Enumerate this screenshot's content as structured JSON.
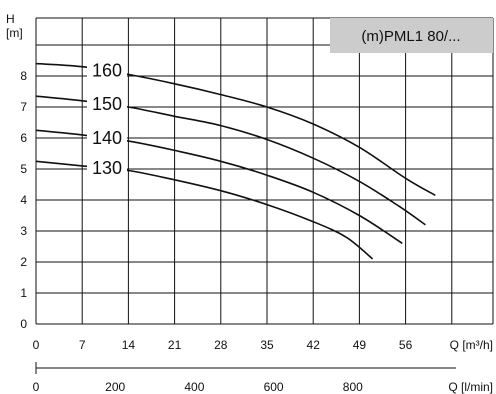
{
  "chart_data": {
    "type": "line",
    "title": "(m)PML1 80/...",
    "ylabel": "H",
    "yunit": "[m]",
    "xlabel_flow_m3h": "Q [m³/h]",
    "xlabel_flow_lmin": "Q [l/min]",
    "xlim": [
      0,
      63
    ],
    "ylim": [
      0,
      9
    ],
    "grid": true,
    "x_ticks": [
      "0",
      "7",
      "14",
      "21",
      "28",
      "35",
      "42",
      "49",
      "56"
    ],
    "y_ticks": [
      "0",
      "1",
      "2",
      "3",
      "4",
      "5",
      "6",
      "7",
      "8"
    ],
    "lmin_ticks": [
      "0",
      "200",
      "400",
      "600",
      "800"
    ],
    "series": [
      {
        "name": "160",
        "x": [
          0,
          7,
          14,
          21,
          28,
          35,
          42,
          49,
          56,
          60.5
        ],
        "y": [
          8.4,
          8.3,
          8.05,
          7.75,
          7.4,
          7.0,
          6.45,
          5.7,
          4.7,
          4.15
        ]
      },
      {
        "name": "150",
        "x": [
          0,
          7,
          14,
          21,
          28,
          35,
          42,
          49,
          55,
          59
        ],
        "y": [
          7.35,
          7.2,
          7.0,
          6.7,
          6.4,
          5.95,
          5.35,
          4.6,
          3.8,
          3.2
        ]
      },
      {
        "name": "140",
        "x": [
          0,
          7,
          14,
          21,
          28,
          35,
          42,
          49,
          55.5
        ],
        "y": [
          6.25,
          6.1,
          5.9,
          5.6,
          5.25,
          4.8,
          4.25,
          3.5,
          2.6
        ]
      },
      {
        "name": "130",
        "x": [
          0,
          7,
          14,
          21,
          28,
          35,
          42,
          47,
          51
        ],
        "y": [
          5.25,
          5.1,
          4.95,
          4.65,
          4.3,
          3.85,
          3.3,
          2.8,
          2.1
        ]
      }
    ]
  }
}
